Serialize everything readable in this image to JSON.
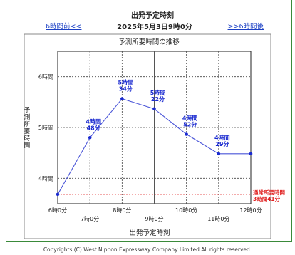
{
  "header": {
    "title": "出発予定時刻",
    "date": "2025年5月3日9時0分",
    "prev_link": "6時間前<<",
    "next_link": ">>6時間後"
  },
  "chart_data": {
    "type": "line",
    "title": "予測所要時間の推移",
    "xlabel": "出発予定時刻",
    "ylabel": "予測所要時間",
    "x_ticks_upper": [
      "6時0分",
      "8時0分",
      "10時0分",
      "12時0分"
    ],
    "x_ticks_lower": [
      "7時0分",
      "9時0分",
      "11時0分"
    ],
    "y_ticks": [
      "6時間",
      "5時間",
      "4時間"
    ],
    "x_range_hours": [
      6,
      12
    ],
    "y_range_minutes": [
      210,
      390
    ],
    "series": [
      {
        "points": [
          {
            "x": 6.0,
            "y": 221
          },
          {
            "x": 7.0,
            "y": 288
          },
          {
            "x": 8.0,
            "y": 334
          },
          {
            "x": 9.0,
            "y": 322
          },
          {
            "x": 10.0,
            "y": 292
          },
          {
            "x": 11.0,
            "y": 269
          },
          {
            "x": 12.0,
            "y": 269
          }
        ]
      }
    ],
    "data_labels": [
      {
        "x": 7.0,
        "y": 288,
        "text": "4時間\n48分"
      },
      {
        "x": 8.0,
        "y": 334,
        "text": "5時間\n34分"
      },
      {
        "x": 9.0,
        "y": 322,
        "text": "5時間\n22分"
      },
      {
        "x": 10.0,
        "y": 292,
        "text": "4時間\n52分"
      },
      {
        "x": 11.0,
        "y": 269,
        "text": "4時間\n29分"
      }
    ],
    "reference_line": {
      "y": 221,
      "label": "通常所要時間\n3時間41分",
      "color": "#e02020"
    },
    "line_color": "#4a55d8",
    "label_color": "#1a2ad0",
    "grid": true
  },
  "footer": {
    "copyright": "Copyrights (C) West Nippon Expressway Company Limited All rights reserved."
  }
}
